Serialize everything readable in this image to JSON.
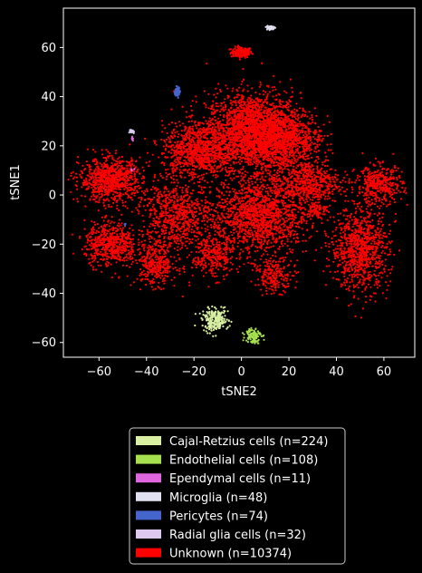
{
  "chart_data": {
    "type": "scatter",
    "title": "",
    "xlabel": "tSNE2",
    "ylabel": "tSNE1",
    "xlim": [
      -75,
      73
    ],
    "ylim": [
      -66,
      76
    ],
    "xticks": [
      -60,
      -40,
      -20,
      0,
      20,
      40,
      60
    ],
    "yticks": [
      -60,
      -40,
      -20,
      0,
      20,
      40,
      60
    ],
    "xtick_labels": [
      "−60",
      "−40",
      "−20",
      "0",
      "20",
      "40",
      "60"
    ],
    "ytick_labels": [
      "−60",
      "−40",
      "−20",
      "0",
      "20",
      "40",
      "60"
    ],
    "grid": false,
    "legend_position": "below",
    "series": [
      {
        "name": "Cajal-Retzius cells (n=224)",
        "color": "#d9f0a3",
        "clusters": [
          {
            "cx": -11,
            "cy": -51,
            "rx": 5,
            "ry": 4,
            "n": 224
          }
        ]
      },
      {
        "name": "Endothelial cells (n=108)",
        "color": "#a6e050",
        "clusters": [
          {
            "cx": 5,
            "cy": -57,
            "rx": 3,
            "ry": 3,
            "n": 108
          }
        ]
      },
      {
        "name": "Ependymal cells (n=11)",
        "color": "#e066e0",
        "clusters": [
          {
            "cx": -46,
            "cy": 23,
            "rx": 0.6,
            "ry": 1.5,
            "n": 7
          },
          {
            "cx": -46,
            "cy": 10,
            "rx": 0.5,
            "ry": 0.8,
            "n": 4
          }
        ]
      },
      {
        "name": "Microglia (n=48)",
        "color": "#e0e0f0",
        "clusters": [
          {
            "cx": 12,
            "cy": 68,
            "rx": 1.6,
            "ry": 0.9,
            "n": 48
          }
        ]
      },
      {
        "name": "Pericytes (n=74)",
        "color": "#4466cc",
        "clusters": [
          {
            "cx": -27,
            "cy": 42,
            "rx": 1,
            "ry": 1.8,
            "n": 70
          },
          {
            "cx": -49,
            "cy": -12,
            "rx": 0.3,
            "ry": 0.3,
            "n": 4
          }
        ]
      },
      {
        "name": "Radial glia cells (n=32)",
        "color": "#ddc9f0",
        "clusters": [
          {
            "cx": -46,
            "cy": 26,
            "rx": 1,
            "ry": 0.8,
            "n": 32
          }
        ]
      },
      {
        "name": "Unknown (n=10374)",
        "color": "#ff0000",
        "clusters": [
          {
            "cx": 0,
            "cy": 58,
            "rx": 4,
            "ry": 2,
            "n": 140
          },
          {
            "cx": 5,
            "cy": 26,
            "rx": 18,
            "ry": 14,
            "n": 2200
          },
          {
            "cx": -18,
            "cy": 18,
            "rx": 14,
            "ry": 10,
            "n": 900
          },
          {
            "cx": 18,
            "cy": 22,
            "rx": 14,
            "ry": 10,
            "n": 800
          },
          {
            "cx": -55,
            "cy": 6,
            "rx": 12,
            "ry": 8,
            "n": 850
          },
          {
            "cx": -28,
            "cy": -8,
            "rx": 14,
            "ry": 12,
            "n": 700
          },
          {
            "cx": 8,
            "cy": -8,
            "rx": 18,
            "ry": 15,
            "n": 1500
          },
          {
            "cx": 28,
            "cy": 5,
            "rx": 12,
            "ry": 8,
            "n": 500
          },
          {
            "cx": -55,
            "cy": -20,
            "rx": 10,
            "ry": 8,
            "n": 550
          },
          {
            "cx": -36,
            "cy": -28,
            "rx": 8,
            "ry": 8,
            "n": 350
          },
          {
            "cx": -12,
            "cy": -25,
            "rx": 8,
            "ry": 8,
            "n": 300
          },
          {
            "cx": 14,
            "cy": -33,
            "rx": 7,
            "ry": 6,
            "n": 200
          },
          {
            "cx": 50,
            "cy": -22,
            "rx": 11,
            "ry": 15,
            "n": 900
          },
          {
            "cx": 58,
            "cy": 4,
            "rx": 9,
            "ry": 7,
            "n": 400
          },
          {
            "cx": 32,
            "cy": -6,
            "rx": 4,
            "ry": 3,
            "n": 84
          }
        ]
      }
    ]
  }
}
